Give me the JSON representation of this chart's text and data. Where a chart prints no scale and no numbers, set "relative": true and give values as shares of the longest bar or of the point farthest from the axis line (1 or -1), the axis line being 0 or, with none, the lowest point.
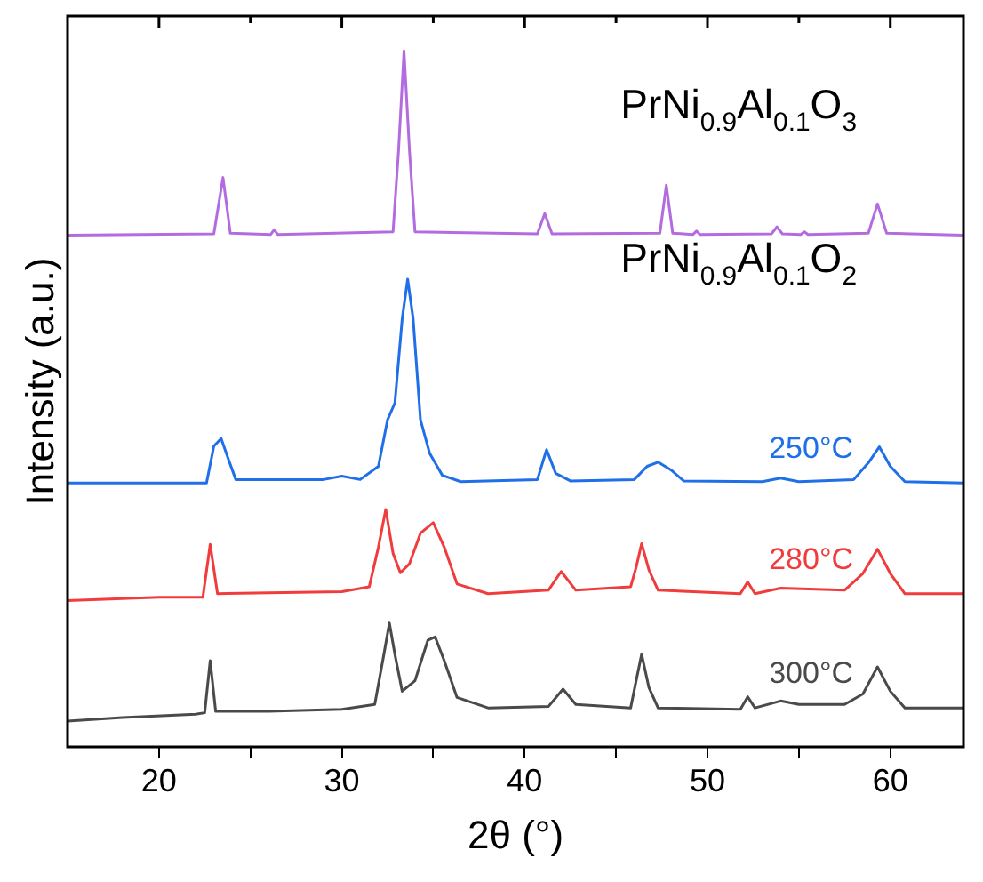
{
  "chart_data": {
    "type": "line",
    "relative": true,
    "xlabel": "2θ (°)",
    "ylabel": "Intensity (a.u.)",
    "xlim": [
      15,
      64
    ],
    "xticks": [
      20,
      {
        "value": 25,
        "label": null
      },
      30,
      {
        "value": 35,
        "label": null
      },
      40,
      {
        "value": 45,
        "label": null
      },
      50,
      {
        "value": 55,
        "label": null
      },
      60
    ],
    "grid": false,
    "legend": false,
    "marker": "none",
    "line_style": "solid",
    "annotations": [
      "PrNi$_{0.9}$Al$_{0.1}$O$_{3}$",
      "PrNi$_{0.9}$Al$_{0.1}$O$_{2}$"
    ],
    "series": [
      {
        "color": "#b36be0",
        "x": [
          15,
          23.0,
          23.5,
          23.9,
          26.1,
          26.3,
          26.5,
          32.8,
          33.1,
          33.4,
          33.7,
          34.0,
          40.7,
          41.1,
          41.5,
          47.4,
          47.75,
          48.1,
          49.2,
          49.4,
          49.6,
          53.5,
          53.8,
          54.1,
          55.1,
          55.3,
          55.5,
          58.8,
          59.3,
          59.8,
          64
        ],
        "values": [
          0.735,
          0.737,
          0.818,
          0.738,
          0.736,
          0.743,
          0.736,
          0.74,
          0.856,
          1.0,
          0.856,
          0.74,
          0.737,
          0.766,
          0.737,
          0.738,
          0.807,
          0.738,
          0.736,
          0.741,
          0.736,
          0.737,
          0.747,
          0.737,
          0.736,
          0.74,
          0.736,
          0.738,
          0.78,
          0.738,
          0.735
        ]
      },
      {
        "name": "250°C",
        "color": "#1f6fe8",
        "x": [
          15,
          22.6,
          23.0,
          23.4,
          23.8,
          24.2,
          29,
          30,
          31,
          32,
          32.5,
          32.9,
          33.3,
          33.6,
          33.9,
          34.3,
          34.8,
          35.5,
          36.5,
          40.7,
          41.2,
          41.7,
          42.5,
          46,
          46.7,
          47.3,
          48,
          48.7,
          53,
          54,
          55,
          58,
          58.8,
          59.4,
          60,
          60.8,
          64
        ],
        "values": [
          0.379,
          0.379,
          0.432,
          0.443,
          0.413,
          0.384,
          0.384,
          0.389,
          0.384,
          0.403,
          0.47,
          0.494,
          0.615,
          0.672,
          0.615,
          0.47,
          0.422,
          0.39,
          0.381,
          0.384,
          0.427,
          0.393,
          0.382,
          0.384,
          0.403,
          0.409,
          0.398,
          0.382,
          0.381,
          0.386,
          0.381,
          0.384,
          0.408,
          0.431,
          0.403,
          0.381,
          0.379
        ]
      },
      {
        "name": "280°C",
        "color": "#f03c3c",
        "x": [
          15,
          20,
          22.4,
          22.8,
          23.2,
          30,
          31.5,
          32.0,
          32.4,
          32.8,
          33.2,
          33.7,
          34.3,
          35.0,
          35.6,
          36.3,
          38,
          41.3,
          42.0,
          42.8,
          45.8,
          46.1,
          46.4,
          46.8,
          47.3,
          51.8,
          52.2,
          52.6,
          54,
          57.5,
          58.5,
          59.3,
          60,
          60.8,
          64
        ],
        "values": [
          0.21,
          0.215,
          0.215,
          0.291,
          0.22,
          0.223,
          0.23,
          0.287,
          0.341,
          0.278,
          0.25,
          0.263,
          0.307,
          0.322,
          0.287,
          0.234,
          0.22,
          0.225,
          0.252,
          0.225,
          0.23,
          0.258,
          0.292,
          0.254,
          0.225,
          0.22,
          0.237,
          0.22,
          0.228,
          0.225,
          0.249,
          0.284,
          0.249,
          0.22,
          0.22
        ]
      },
      {
        "name": "300°C",
        "color": "#4a4a4a",
        "x": [
          15,
          18,
          22,
          22.5,
          22.8,
          23.1,
          26,
          30,
          31.8,
          32.3,
          32.6,
          32.9,
          33.3,
          34.0,
          34.7,
          35.1,
          35.6,
          36.3,
          38,
          41.3,
          42.1,
          42.8,
          45.8,
          46.1,
          46.4,
          46.8,
          47.3,
          51.8,
          52.2,
          52.6,
          54,
          55,
          57.5,
          58.5,
          59.3,
          60,
          60.8,
          64
        ],
        "values": [
          0.037,
          0.042,
          0.047,
          0.049,
          0.124,
          0.051,
          0.051,
          0.054,
          0.061,
          0.133,
          0.178,
          0.133,
          0.08,
          0.095,
          0.153,
          0.158,
          0.124,
          0.071,
          0.056,
          0.058,
          0.083,
          0.061,
          0.056,
          0.095,
          0.133,
          0.085,
          0.056,
          0.054,
          0.072,
          0.056,
          0.066,
          0.061,
          0.061,
          0.076,
          0.115,
          0.08,
          0.056,
          0.056
        ]
      }
    ]
  }
}
